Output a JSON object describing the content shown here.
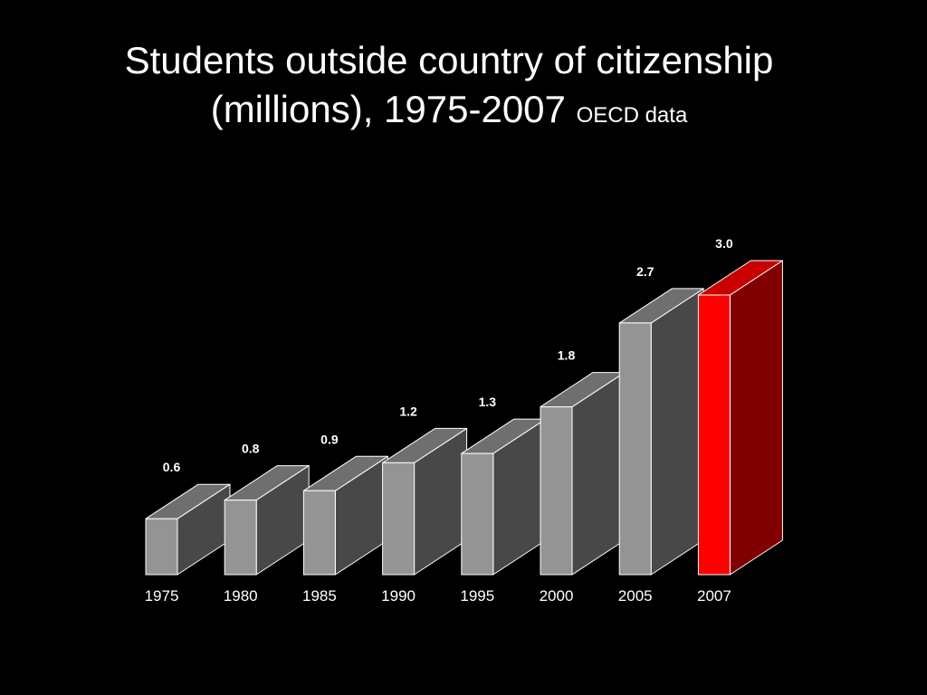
{
  "slide": {
    "title_line1": "Students outside country of citizenship",
    "title_line2": "(millions), 1975-2007",
    "subtitle": "OECD data"
  },
  "colors": {
    "background": "#000000",
    "bar_front": "#949494",
    "bar_top": "#6f6f6f",
    "bar_side": "#484848",
    "bar_edge": "#ffffff",
    "highlight_front": "#ff0000",
    "highlight_top": "#c80000",
    "highlight_side": "#800000",
    "text": "#ffffff"
  },
  "chart_data": {
    "type": "bar",
    "style": "3d",
    "categories": [
      "1975",
      "1980",
      "1985",
      "1990",
      "1995",
      "2000",
      "2005",
      "2007"
    ],
    "values": [
      0.6,
      0.8,
      0.9,
      1.2,
      1.3,
      1.8,
      2.7,
      3.0
    ],
    "data_labels": [
      "0.6",
      "0.8",
      "0.9",
      "1.2",
      "1.3",
      "1.8",
      "2.7",
      "3.0"
    ],
    "highlight_category": "2007",
    "ylim": [
      0,
      3.0
    ],
    "grid": false,
    "legend": "none"
  }
}
